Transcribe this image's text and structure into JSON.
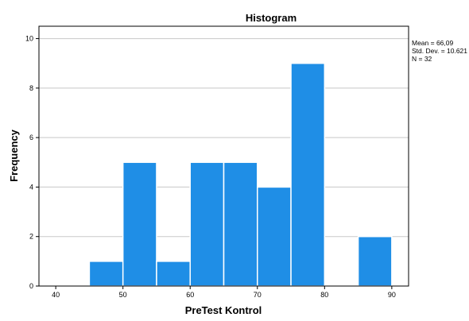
{
  "chart_data": {
    "type": "bar",
    "title": "Histogram",
    "xlabel": "PreTest Kontrol",
    "ylabel": "Frequency",
    "xlim": [
      37.5,
      92.5
    ],
    "ylim": [
      0,
      10.5
    ],
    "x_ticks": [
      40,
      50,
      60,
      70,
      80,
      90
    ],
    "y_ticks": [
      0,
      2,
      4,
      6,
      8,
      10
    ],
    "grid": "horizontal",
    "bar_color": "#1f8ee6",
    "bar_edge_color": "#ffffff",
    "bins": [
      {
        "start": 45,
        "end": 50,
        "count": 1
      },
      {
        "start": 50,
        "end": 55,
        "count": 5
      },
      {
        "start": 55,
        "end": 60,
        "count": 1
      },
      {
        "start": 60,
        "end": 65,
        "count": 5
      },
      {
        "start": 65,
        "end": 70,
        "count": 5
      },
      {
        "start": 70,
        "end": 75,
        "count": 4
      },
      {
        "start": 75,
        "end": 80,
        "count": 9
      },
      {
        "start": 85,
        "end": 90,
        "count": 2
      }
    ],
    "stats": {
      "mean": "Mean = 66,09",
      "std": "Std. Dev. = 10.621",
      "n": "N = 32"
    }
  }
}
